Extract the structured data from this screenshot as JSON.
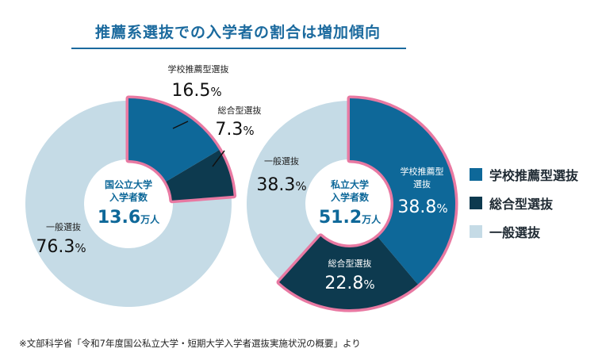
{
  "title": "推薦系選抜での入学者の割合は増加傾向",
  "footnote": "※文部科学省「令和7年度国公私立大学・短期大学入学者選抜実施状況の概要」より",
  "colors": {
    "school": "#0e6899",
    "general_rec": "#0d3a4f",
    "general": "#c5dbe6",
    "highlight": "#e879a2",
    "title": "#1b6a9e"
  },
  "legend": [
    {
      "label": "学校推薦型選抜",
      "color": "#0e6899"
    },
    {
      "label": "総合型選抜",
      "color": "#0d3a4f"
    },
    {
      "label": "一般選抜",
      "color": "#c5dbe6"
    }
  ],
  "chart_data": [
    {
      "type": "pie",
      "center_label": [
        "国公立大学",
        "入学者数"
      ],
      "total_value": "13.6",
      "total_unit": "万人",
      "slices": [
        {
          "name": "学校推薦型選抜",
          "value": 16.5,
          "value_text": "16.5",
          "unit": "%"
        },
        {
          "name": "総合型選抜",
          "value": 7.3,
          "value_text": "7.3",
          "unit": "%"
        },
        {
          "name": "一般選抜",
          "value": 76.3,
          "value_text": "76.3",
          "unit": "%"
        }
      ]
    },
    {
      "type": "pie",
      "center_label": [
        "私立大学",
        "入学者数"
      ],
      "total_value": "51.2",
      "total_unit": "万人",
      "slices": [
        {
          "name": "学校推薦型選抜",
          "display_name": [
            "学校推薦型",
            "選抜"
          ],
          "value": 38.8,
          "value_text": "38.8",
          "unit": "%"
        },
        {
          "name": "総合型選抜",
          "value": 22.8,
          "value_text": "22.8",
          "unit": "%"
        },
        {
          "name": "一般選抜",
          "value": 38.3,
          "value_text": "38.3",
          "unit": "%"
        }
      ]
    }
  ]
}
